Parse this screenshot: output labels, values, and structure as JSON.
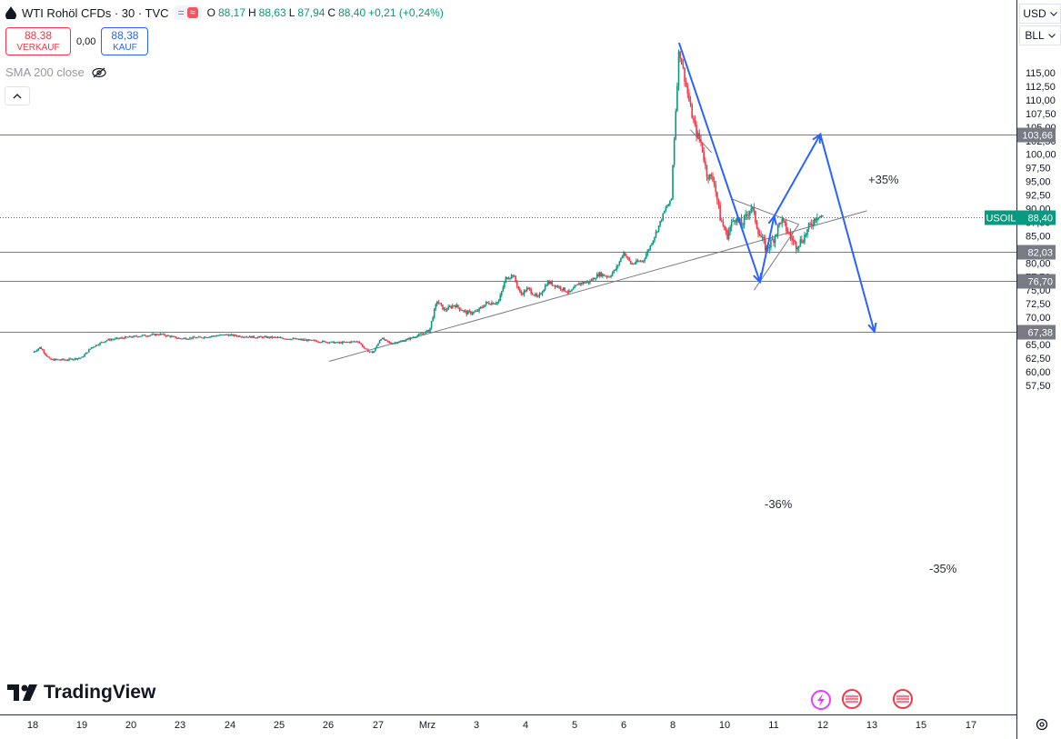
{
  "header": {
    "symbol": "WTI Rohöl CFDs · 30 · TVC",
    "ohlc": {
      "o_label": "O",
      "o": "88,17",
      "h_label": "H",
      "h": "88,63",
      "l_label": "L",
      "l": "87,94",
      "c_label": "C",
      "c": "88,40",
      "change": "+0,21 (+0,24%)"
    },
    "pill_left": "=",
    "pill_right": "≈"
  },
  "trade": {
    "sell_price": "88,38",
    "sell_label": "VERKAUF",
    "spread": "0,00",
    "buy_price": "88,38",
    "buy_label": "KAUF"
  },
  "indicator": {
    "label": "SMA 200 close",
    "icon": "eye-slash-icon"
  },
  "right_top": {
    "currency": "USD",
    "unit": "BLL"
  },
  "logo": {
    "text": "TradingView"
  },
  "colors": {
    "up": "#089981",
    "down": "#f23645",
    "drawing": "#2962ff",
    "level": "#787b86",
    "axis_bg": "#ffffff"
  },
  "chart_data": {
    "type": "candlestick",
    "symbol": "USOIL",
    "last_price": "88,40",
    "y_axis": {
      "range": [
        56,
        121
      ],
      "ticks": [
        "115,00",
        "112,50",
        "110,00",
        "107,50",
        "105,00",
        "102,50",
        "100,00",
        "97,50",
        "95,00",
        "92,50",
        "90,00",
        "87,50",
        "85,00",
        "82,50",
        "80,00",
        "77,50",
        "75,00",
        "72,50",
        "70,00",
        "67,50",
        "65,00",
        "62,50",
        "60,00",
        "57,50"
      ],
      "tick_values": [
        115,
        112.5,
        110,
        107.5,
        105,
        102.5,
        100,
        97.5,
        95,
        92.5,
        90,
        87.5,
        85,
        82.5,
        80,
        77.5,
        75,
        72.5,
        70,
        67.5,
        65,
        62.5,
        60,
        57.5
      ]
    },
    "x_axis": {
      "labels": [
        "18",
        "19",
        "20",
        "23",
        "24",
        "25",
        "26",
        "27",
        "Mrz",
        "3",
        "4",
        "5",
        "6",
        "8",
        "10",
        "11",
        "12",
        "13",
        "15",
        "17"
      ],
      "label_pos": [
        0,
        1,
        2,
        3,
        4,
        5,
        6,
        7,
        8,
        9,
        10,
        11,
        12,
        13,
        14,
        15,
        16,
        17,
        18,
        19
      ]
    },
    "levels": [
      {
        "value": 103.66,
        "label": "103,66"
      },
      {
        "value": 82.03,
        "label": "82,03"
      },
      {
        "value": 76.7,
        "label": "76,70"
      },
      {
        "value": 67.38,
        "label": "67,38"
      }
    ],
    "price_path": [
      [
        0,
        63.5
      ],
      [
        0.15,
        64.5
      ],
      [
        0.35,
        62.2
      ],
      [
        0.7,
        62.2
      ],
      [
        1.0,
        62.6
      ],
      [
        1.2,
        64.5
      ],
      [
        1.5,
        65.8
      ],
      [
        1.9,
        66.3
      ],
      [
        2.2,
        66.6
      ],
      [
        2.6,
        66.9
      ],
      [
        3.0,
        66.1
      ],
      [
        3.4,
        66.3
      ],
      [
        3.9,
        66.8
      ],
      [
        4.4,
        66.4
      ],
      [
        4.9,
        66.3
      ],
      [
        5.3,
        66.0
      ],
      [
        5.8,
        65.6
      ],
      [
        6.2,
        65.3
      ],
      [
        6.6,
        65.6
      ],
      [
        6.75,
        64.0
      ],
      [
        6.9,
        63.5
      ],
      [
        7.05,
        66.2
      ],
      [
        7.25,
        65.2
      ],
      [
        7.45,
        65.5
      ],
      [
        7.7,
        66.3
      ],
      [
        7.95,
        67.2
      ],
      [
        8.05,
        67.8
      ],
      [
        8.12,
        70.5
      ],
      [
        8.2,
        73.0
      ],
      [
        8.35,
        71.3
      ],
      [
        8.55,
        72.3
      ],
      [
        8.8,
        70.8
      ],
      [
        9.0,
        71.0
      ],
      [
        9.2,
        72.6
      ],
      [
        9.45,
        72.8
      ],
      [
        9.6,
        77.2
      ],
      [
        9.75,
        77.8
      ],
      [
        9.9,
        74.2
      ],
      [
        10.05,
        75.3
      ],
      [
        10.25,
        73.5
      ],
      [
        10.45,
        76.5
      ],
      [
        10.7,
        75.5
      ],
      [
        10.9,
        74.5
      ],
      [
        11.1,
        76.3
      ],
      [
        11.3,
        76.5
      ],
      [
        11.5,
        78.0
      ],
      [
        11.7,
        77.5
      ],
      [
        11.85,
        79.0
      ],
      [
        12.0,
        82.0
      ],
      [
        12.15,
        79.8
      ],
      [
        12.4,
        80.5
      ],
      [
        12.55,
        83.3
      ],
      [
        12.7,
        86.5
      ],
      [
        12.85,
        90.0
      ],
      [
        12.97,
        91.5
      ],
      [
        13.0,
        98.0
      ],
      [
        13.05,
        107.0
      ],
      [
        13.12,
        119.5
      ],
      [
        13.2,
        115.5
      ],
      [
        13.35,
        108.0
      ],
      [
        13.45,
        104.0
      ],
      [
        13.55,
        102.0
      ],
      [
        13.65,
        96.5
      ],
      [
        13.8,
        95.0
      ],
      [
        13.92,
        88.0
      ],
      [
        14.05,
        85.0
      ],
      [
        14.2,
        88.5
      ],
      [
        14.35,
        87.0
      ],
      [
        14.55,
        90.5
      ],
      [
        14.7,
        85.5
      ],
      [
        14.85,
        82.5
      ],
      [
        15.0,
        84.5
      ],
      [
        15.15,
        88.0
      ],
      [
        15.3,
        85.5
      ],
      [
        15.45,
        83.2
      ],
      [
        15.6,
        84.5
      ],
      [
        15.75,
        87.0
      ],
      [
        15.9,
        89.0
      ],
      [
        16.0,
        88.4
      ]
    ],
    "annotations": [
      "+35%",
      "-36%",
      "-35%"
    ],
    "drawings": {
      "blue_path": [
        [
          13.12,
          120.5
        ],
        [
          14.72,
          76.5
        ],
        [
          15.01,
          88.6
        ],
        [
          15.95,
          103.66
        ],
        [
          17.05,
          67.38
        ]
      ],
      "trendlines": [
        [
          [
            6.02,
            61.9
          ],
          [
            16.9,
            89.6
          ]
        ],
        [
          [
            14.14,
            91.8
          ],
          [
            15.51,
            87.1
          ]
        ],
        [
          [
            14.6,
            75.0
          ],
          [
            15.51,
            87.1
          ]
        ],
        [
          [
            13.34,
            104.5
          ],
          [
            13.75,
            100.3
          ]
        ]
      ]
    }
  }
}
